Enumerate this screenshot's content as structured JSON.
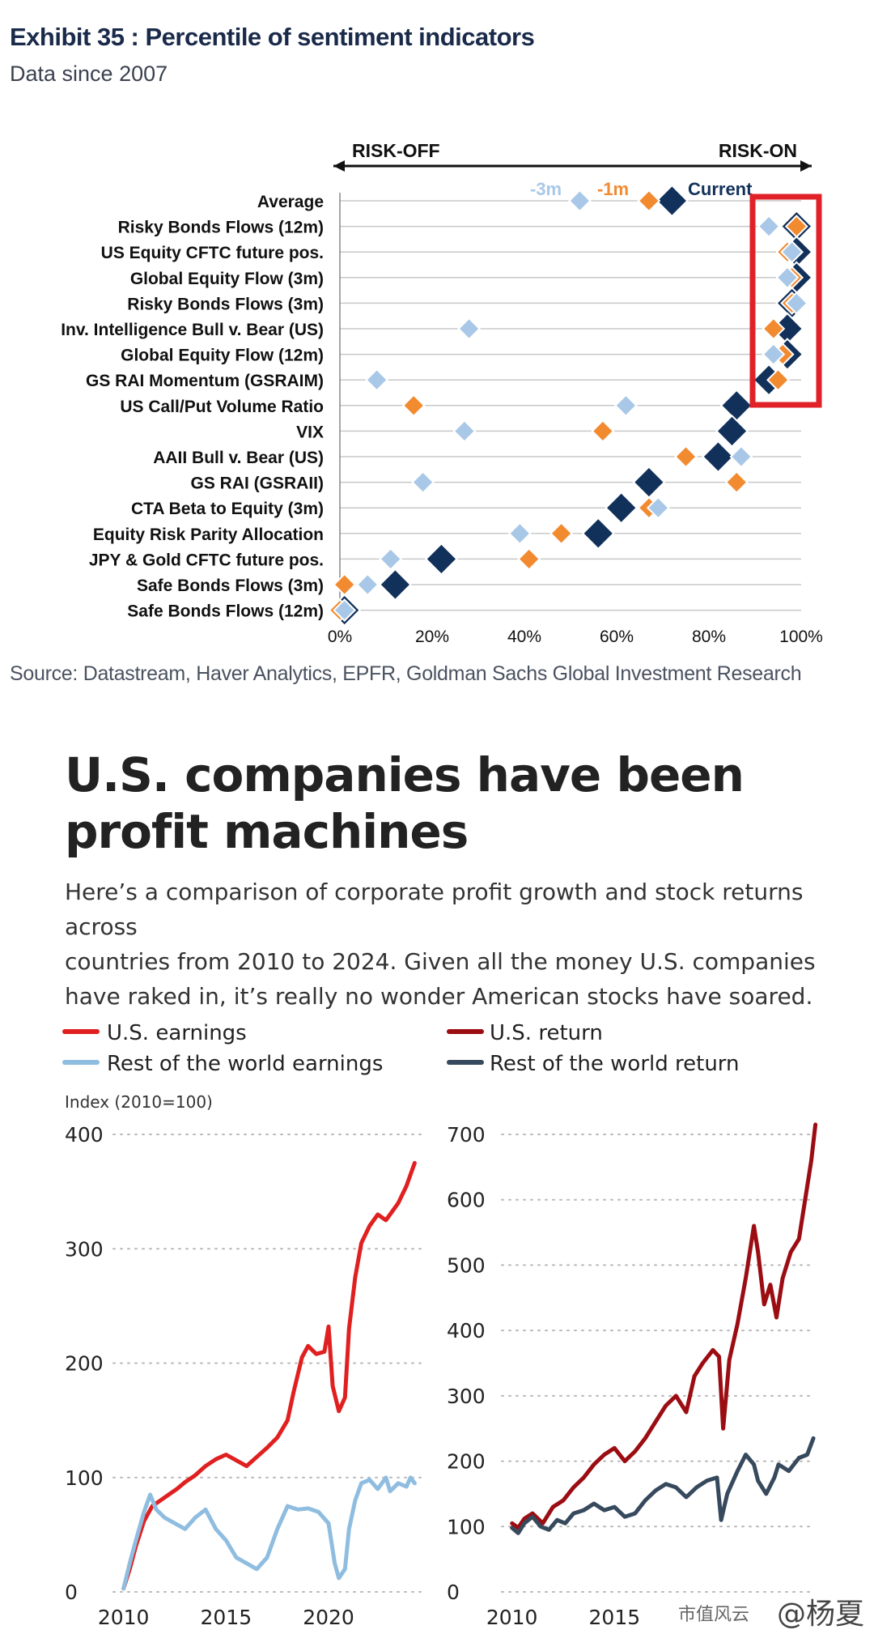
{
  "exhibit": {
    "title": "Exhibit 35 : Percentile of sentiment indicators",
    "subtitle": "Data since 2007",
    "source": "Source: Datastream, Haver Analytics, EPFR, Goldman Sachs Global Investment Research"
  },
  "article": {
    "headline_line1": "U.S. companies have been",
    "headline_line2": "profit machines",
    "description_line1": "Here’s a comparison of corporate profit growth and stock returns across",
    "description_line2": "countries from 2010 to 2024. Given all the money U.S. companies",
    "description_line3": "have raked in, it’s really no wonder American stocks have soared."
  },
  "watermark": {
    "left": "市值风云",
    "right": "@杨夏"
  },
  "colors": {
    "m3": "#a9c8e8",
    "m1": "#f28a30",
    "current": "#12315a",
    "highlight": "#e02228",
    "us_earnings": "#e02020",
    "row_earnings": "#8fbde0",
    "us_return": "#9b0d12",
    "row_return": "#37495c"
  },
  "chart_data": [
    {
      "type": "scatter",
      "title": "Percentile of sentiment indicators",
      "direction_left": "RISK-OFF",
      "direction_right": "RISK-ON",
      "legend": [
        "-3m",
        "-1m",
        "Current"
      ],
      "xlim": [
        0,
        100
      ],
      "x_ticks": [
        "0%",
        "20%",
        "40%",
        "60%",
        "80%",
        "100%"
      ],
      "categories": [
        "Average",
        "Risky Bonds Flows (12m)",
        "US Equity CFTC future pos.",
        "Global Equity Flow (3m)",
        "Risky Bonds Flows (3m)",
        "Inv. Intelligence Bull v. Bear (US)",
        "Global Equity Flow (12m)",
        "GS RAI Momentum (GSRAIM)",
        "US Call/Put Volume Ratio",
        "VIX",
        "AAII Bull v. Bear (US)",
        "GS RAI (GSRAII)",
        "CTA Beta to Equity (3m)",
        "Equity Risk Parity Allocation",
        "JPY & Gold CFTC future pos.",
        "Safe Bonds Flows (3m)",
        "Safe Bonds Flows (12m)"
      ],
      "series": [
        {
          "name": "-3m",
          "values": [
            52,
            93,
            98,
            97,
            99,
            28,
            94,
            8,
            62,
            27,
            87,
            18,
            69,
            39,
            11,
            6,
            1
          ]
        },
        {
          "name": "-1m",
          "values": [
            67,
            99,
            97,
            98,
            98,
            94,
            96,
            95,
            16,
            57,
            75,
            86,
            67,
            48,
            41,
            1,
            0
          ]
        },
        {
          "name": "Current",
          "values": [
            72,
            99,
            99,
            99,
            98,
            97,
            97,
            93,
            86,
            85,
            82,
            67,
            61,
            56,
            22,
            12,
            1
          ]
        }
      ],
      "highlight_box_rows": [
        1,
        7
      ]
    },
    {
      "type": "line",
      "legend": [
        "U.S. earnings",
        "Rest of the world earnings"
      ],
      "ylabel": "Index (2010=100)",
      "ylim": [
        0,
        400
      ],
      "y_ticks": [
        "0",
        "100",
        "200",
        "300",
        "400"
      ],
      "xlim": [
        2009.5,
        2024.5
      ],
      "x_ticks": [
        "2010",
        "2015",
        "2020"
      ],
      "series": [
        {
          "name": "U.S. earnings",
          "x": [
            2010,
            2010.3,
            2010.6,
            2011,
            2011.4,
            2011.8,
            2012.2,
            2012.6,
            2013,
            2013.5,
            2014,
            2014.5,
            2015,
            2015.5,
            2016,
            2016.5,
            2017,
            2017.5,
            2018,
            2018.3,
            2018.7,
            2019,
            2019.4,
            2019.8,
            2020,
            2020.2,
            2020.5,
            2020.8,
            2021,
            2021.3,
            2021.6,
            2022,
            2022.4,
            2022.8,
            2023,
            2023.4,
            2023.8,
            2024,
            2024.2
          ],
          "values": [
            3,
            20,
            40,
            62,
            75,
            80,
            85,
            90,
            96,
            102,
            110,
            116,
            120,
            115,
            110,
            118,
            126,
            135,
            150,
            175,
            205,
            215,
            208,
            210,
            232,
            180,
            158,
            170,
            230,
            275,
            305,
            320,
            330,
            325,
            330,
            340,
            355,
            365,
            375
          ]
        },
        {
          "name": "Rest of the world earnings",
          "x": [
            2010,
            2010.3,
            2010.6,
            2011,
            2011.3,
            2011.6,
            2012,
            2012.5,
            2013,
            2013.5,
            2014,
            2014.5,
            2015,
            2015.5,
            2016,
            2016.5,
            2017,
            2017.5,
            2018,
            2018.5,
            2019,
            2019.5,
            2020,
            2020.3,
            2020.5,
            2020.8,
            2021,
            2021.3,
            2021.6,
            2022,
            2022.4,
            2022.8,
            2023,
            2023.4,
            2023.8,
            2024,
            2024.2
          ],
          "values": [
            3,
            25,
            45,
            70,
            85,
            72,
            65,
            60,
            55,
            65,
            72,
            55,
            45,
            30,
            25,
            20,
            30,
            55,
            75,
            72,
            73,
            70,
            60,
            25,
            12,
            20,
            55,
            80,
            95,
            98,
            90,
            100,
            88,
            95,
            92,
            100,
            95
          ]
        }
      ]
    },
    {
      "type": "line",
      "legend": [
        "U.S. return",
        "Rest of the world return"
      ],
      "ylim": [
        0,
        700
      ],
      "y_ticks": [
        "0",
        "100",
        "200",
        "300",
        "400",
        "500",
        "600",
        "700"
      ],
      "xlim": [
        2009.5,
        2024.5
      ],
      "x_ticks": [
        "2010",
        "2015"
      ],
      "series": [
        {
          "name": "U.S. return",
          "x": [
            2010,
            2010.3,
            2010.6,
            2011,
            2011.5,
            2012,
            2012.5,
            2013,
            2013.5,
            2014,
            2014.5,
            2015,
            2015.5,
            2016,
            2016.5,
            2017,
            2017.5,
            2018,
            2018.5,
            2018.9,
            2019.3,
            2019.8,
            2020.1,
            2020.3,
            2020.6,
            2021,
            2021.4,
            2021.8,
            2022,
            2022.3,
            2022.6,
            2022.9,
            2023.2,
            2023.6,
            2024,
            2024.3,
            2024.6,
            2024.8
          ],
          "values": [
            105,
            98,
            112,
            120,
            105,
            130,
            140,
            160,
            175,
            195,
            210,
            220,
            200,
            215,
            235,
            260,
            285,
            300,
            275,
            330,
            350,
            370,
            360,
            250,
            355,
            410,
            480,
            560,
            520,
            440,
            470,
            420,
            480,
            520,
            540,
            600,
            660,
            715
          ]
        },
        {
          "name": "Rest of the world return",
          "x": [
            2010,
            2010.3,
            2010.6,
            2011,
            2011.4,
            2011.8,
            2012.2,
            2012.6,
            2013,
            2013.5,
            2014,
            2014.5,
            2015,
            2015.5,
            2016,
            2016.5,
            2017,
            2017.5,
            2018,
            2018.5,
            2019,
            2019.5,
            2020,
            2020.2,
            2020.5,
            2021,
            2021.4,
            2021.8,
            2022,
            2022.4,
            2022.8,
            2023,
            2023.5,
            2024,
            2024.4,
            2024.7
          ],
          "values": [
            98,
            90,
            105,
            115,
            100,
            95,
            110,
            105,
            120,
            125,
            135,
            125,
            130,
            115,
            120,
            140,
            155,
            165,
            160,
            145,
            160,
            170,
            175,
            110,
            150,
            185,
            210,
            195,
            170,
            150,
            175,
            195,
            185,
            205,
            210,
            235
          ]
        }
      ]
    }
  ]
}
